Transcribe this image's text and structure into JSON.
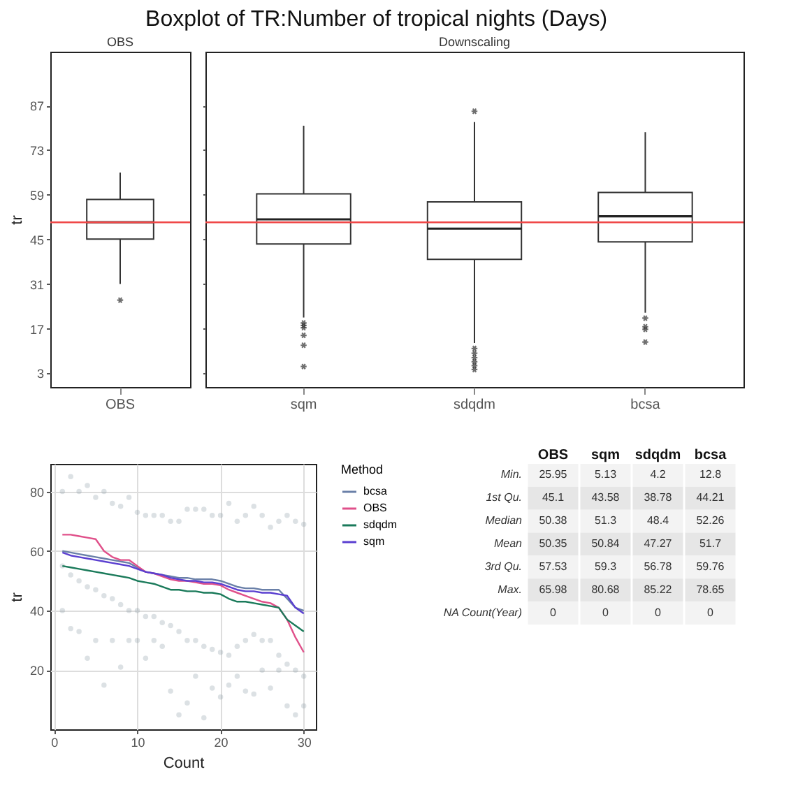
{
  "chart_data": [
    {
      "type": "box",
      "subtitle": "OBS",
      "ylabel": "tr",
      "categories": [
        "OBS"
      ],
      "marker": "star",
      "ylim": [
        -1.3,
        103.9
      ],
      "yticks": [
        3,
        17,
        31,
        45,
        59,
        73,
        87
      ],
      "boxes": [
        {
          "low": 31,
          "q1": 45.1,
          "median": 50.38,
          "q3": 57.53,
          "high": 65.98,
          "outliers": [
            25.95
          ]
        }
      ],
      "ref_lines": [
        {
          "axis": "y",
          "value": 50.38,
          "color": "#f04848"
        }
      ]
    },
    {
      "type": "box",
      "title": "Boxplot of TR:Number of tropical nights (Days)",
      "subtitle": "Downscaling",
      "categories": [
        "sqm",
        "sdqdm",
        "bcsa"
      ],
      "marker": "star",
      "tick_labels": "x",
      "ylim": [
        -1.3,
        103.9
      ],
      "yticks": [
        3,
        17,
        31,
        45,
        59,
        73,
        87
      ],
      "boxes": [
        {
          "low": 20.5,
          "q1": 43.58,
          "median": 51.3,
          "q3": 59.3,
          "high": 80.68,
          "outliers": [
            18.8,
            18,
            17.3,
            14.9,
            11.8,
            5.13
          ]
        },
        {
          "low": 12.5,
          "q1": 38.78,
          "median": 48.4,
          "q3": 56.78,
          "high": 81.8,
          "outliers": [
            85.22,
            10.8,
            9.3,
            7.9,
            6.6,
            5.4,
            4.2
          ]
        },
        {
          "low": 22,
          "q1": 44.21,
          "median": 52.26,
          "q3": 59.76,
          "high": 78.65,
          "outliers": [
            20.3,
            17.6,
            16.8,
            12.8
          ]
        }
      ],
      "ref_lines": [
        {
          "axis": "y",
          "value": 50.38,
          "color": "#f04848"
        }
      ]
    },
    {
      "type": "scatter",
      "xlabel": "Count",
      "ylabel": "tr",
      "legend_title": "Method",
      "legend": "right",
      "grid": true,
      "xlim": [
        -0.45,
        31.45
      ],
      "ylim": [
        0.15,
        89.27
      ],
      "xticks": [
        0,
        10,
        20,
        30
      ],
      "yticks": [
        20,
        40,
        60,
        80
      ],
      "series": [
        {
          "color": "#8c9aa6",
          "marker": "circle",
          "x": [
            1,
            2,
            3,
            4,
            5,
            6,
            7,
            8,
            9,
            10,
            11,
            12,
            13,
            14,
            15,
            16,
            17,
            18,
            19,
            20,
            21,
            22,
            23,
            24,
            25,
            26,
            27,
            28,
            29,
            30,
            1,
            2,
            3,
            4,
            5,
            6,
            7,
            8,
            9,
            10,
            11,
            12,
            13,
            14,
            15,
            16,
            17,
            18,
            19,
            20,
            21,
            22,
            23,
            24,
            25,
            26,
            27,
            28,
            29,
            30,
            1,
            2,
            3,
            4,
            5,
            6,
            7,
            8,
            9,
            10,
            11,
            12,
            13,
            14,
            15,
            16,
            17,
            18,
            19,
            20,
            21,
            22,
            23,
            24,
            25,
            26,
            27,
            28,
            29,
            30
          ],
          "values": [
            40,
            34,
            33,
            24,
            30,
            15,
            30,
            21,
            30,
            30,
            24,
            30,
            28,
            13,
            5,
            9,
            18,
            4,
            14,
            11,
            15,
            18,
            13,
            12,
            20,
            14,
            20,
            8,
            5,
            8,
            80,
            85,
            80,
            82,
            78,
            80,
            76,
            75,
            78,
            73,
            72,
            72,
            72,
            70,
            70,
            74,
            74,
            74,
            72,
            72,
            76,
            70,
            72,
            75,
            72,
            68,
            70,
            72,
            70,
            69,
            55,
            52,
            50,
            48,
            47,
            45,
            44,
            42,
            40,
            40,
            38,
            38,
            36,
            35,
            33,
            30,
            30,
            28,
            27,
            26,
            25,
            28,
            30,
            32,
            30,
            30,
            25,
            22,
            20,
            18
          ]
        },
        {
          "name": "bcsa",
          "type": "line",
          "marker": "none",
          "color": "#6a80a8",
          "x": [
            1,
            2,
            3,
            4,
            5,
            6,
            7,
            8,
            9,
            10,
            11,
            12,
            13,
            14,
            15,
            16,
            17,
            18,
            19,
            20,
            21,
            22,
            23,
            24,
            25,
            26,
            27,
            28,
            29,
            30
          ],
          "values": [
            60,
            59.5,
            59,
            58.5,
            58,
            57.5,
            57,
            56.5,
            56,
            54.5,
            53,
            52.5,
            52,
            51.5,
            51,
            51,
            50.5,
            50.5,
            50.5,
            50,
            49,
            48,
            47.5,
            47.5,
            47,
            47,
            47,
            44,
            41,
            40
          ]
        },
        {
          "name": "OBS",
          "type": "line",
          "marker": "none",
          "color": "#e0508a",
          "x": [
            1,
            2,
            3,
            4,
            5,
            6,
            7,
            8,
            9,
            10,
            11,
            12,
            13,
            14,
            15,
            16,
            17,
            18,
            19,
            20,
            21,
            22,
            23,
            24,
            25,
            26,
            27,
            28,
            29,
            30
          ],
          "values": [
            65.5,
            65.5,
            65,
            64.5,
            64,
            60,
            58,
            57,
            57,
            55,
            53,
            52.5,
            51.5,
            50.5,
            50,
            50,
            49.5,
            49,
            49,
            48.5,
            47,
            46,
            45,
            44,
            43,
            42.5,
            41,
            37,
            31,
            26
          ]
        },
        {
          "name": "sdqdm",
          "type": "line",
          "marker": "none",
          "color": "#1a7a5a",
          "x": [
            1,
            2,
            3,
            4,
            5,
            6,
            7,
            8,
            9,
            10,
            11,
            12,
            13,
            14,
            15,
            16,
            17,
            18,
            19,
            20,
            21,
            22,
            23,
            24,
            25,
            26,
            27,
            28,
            29,
            30
          ],
          "values": [
            55,
            54.5,
            54,
            53.5,
            53,
            52.5,
            52,
            51.5,
            51,
            50,
            49.5,
            49,
            48,
            47,
            47,
            46.5,
            46.5,
            46,
            46,
            45.5,
            44,
            43,
            43,
            42.5,
            42,
            41.5,
            41,
            37,
            35,
            33
          ]
        },
        {
          "name": "sqm",
          "type": "line",
          "marker": "none",
          "color": "#5a3fd0",
          "x": [
            1,
            2,
            3,
            4,
            5,
            6,
            7,
            8,
            9,
            10,
            11,
            12,
            13,
            14,
            15,
            16,
            17,
            18,
            19,
            20,
            21,
            22,
            23,
            24,
            25,
            26,
            27,
            28,
            29,
            30
          ],
          "values": [
            59.5,
            58.5,
            58,
            57.5,
            57,
            56.5,
            56,
            55.5,
            55,
            54,
            53,
            52.5,
            52,
            51,
            50.5,
            50,
            50,
            49.5,
            49.5,
            49,
            48,
            47,
            46.5,
            46.5,
            46,
            46,
            45.5,
            45,
            41,
            39
          ]
        }
      ]
    },
    {
      "type": "other",
      "data_labels": true,
      "categories": [
        "Min.",
        "1st Qu.",
        "Median",
        "Mean",
        "3rd Qu.",
        "Max.",
        "NA Count(Year)"
      ],
      "series": [
        {
          "name": "OBS",
          "colors": [
            "#f3f3f3",
            "#e6e6e6",
            "#f3f3f3",
            "#e6e6e6",
            "#f3f3f3",
            "#e6e6e6",
            "#f3f3f3"
          ],
          "values": [
            25.95,
            45.1,
            50.38,
            50.35,
            57.53,
            65.98,
            0
          ]
        },
        {
          "name": "sqm",
          "colors": [
            "#f3f3f3",
            "#e6e6e6",
            "#f3f3f3",
            "#e6e6e6",
            "#f3f3f3",
            "#e6e6e6",
            "#f3f3f3"
          ],
          "values": [
            5.13,
            43.58,
            51.3,
            50.84,
            59.3,
            80.68,
            0
          ]
        },
        {
          "name": "sdqdm",
          "colors": [
            "#f3f3f3",
            "#e6e6e6",
            "#f3f3f3",
            "#e6e6e6",
            "#f3f3f3",
            "#e6e6e6",
            "#f3f3f3"
          ],
          "values": [
            4.2,
            38.78,
            48.4,
            47.27,
            56.78,
            85.22,
            0
          ]
        },
        {
          "name": "bcsa",
          "colors": [
            "#f3f3f3",
            "#e6e6e6",
            "#f3f3f3",
            "#e6e6e6",
            "#f3f3f3",
            "#e6e6e6",
            "#f3f3f3"
          ],
          "values": [
            12.8,
            44.21,
            52.26,
            51.7,
            59.76,
            78.65,
            0
          ]
        }
      ]
    }
  ]
}
